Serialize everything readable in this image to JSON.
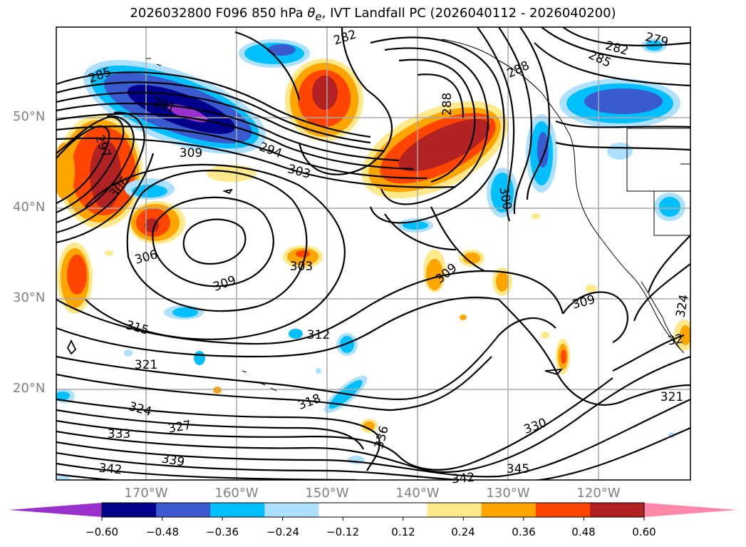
{
  "title": {
    "prefix": "2026032800 F096 850 hPa ",
    "theta": "θ",
    "theta_sub": "e",
    "suffix": ", IVT Landfall PC (2026040112 - 2026040200)"
  },
  "map": {
    "lat_labels": [
      "50°N",
      "40°N",
      "30°N",
      "20°N"
    ],
    "lon_labels": [
      "170°W",
      "160°W",
      "150°W",
      "140°W",
      "130°W",
      "120°W"
    ],
    "contour_labels": [
      "285",
      "282",
      "279",
      "282",
      "285",
      "288",
      "288",
      "291",
      "294",
      "297",
      "303",
      "306",
      "309",
      "300",
      "306",
      "309",
      "303",
      "309",
      "309",
      "315",
      "312",
      "321",
      "318",
      "324",
      "327",
      "333",
      "336",
      "330",
      "339",
      "342",
      "342",
      "345",
      "324",
      "32",
      "321"
    ]
  },
  "colorbar": {
    "colors": [
      "#9932CC",
      "#00008B",
      "#3A5BD0",
      "#00BFFF",
      "#ADE1FF",
      "#FFFFFF",
      "#FFFFFF",
      "#FFE98A",
      "#FFA500",
      "#FF4500",
      "#B22222",
      "#FF88AA"
    ],
    "tick_labels": [
      "−0.60",
      "−0.48",
      "−0.36",
      "−0.24",
      "−0.12",
      "0.12",
      "0.24",
      "0.36",
      "0.48",
      "0.60"
    ]
  }
}
